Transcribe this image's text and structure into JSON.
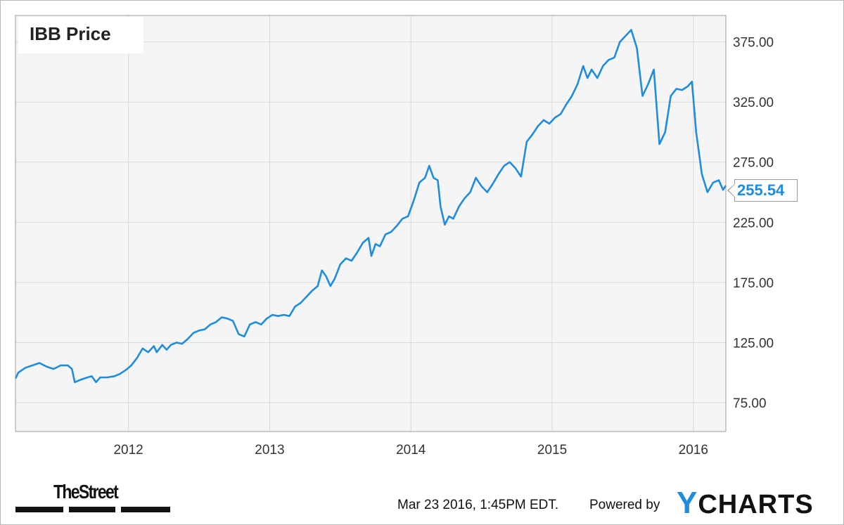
{
  "chart_data": {
    "type": "line",
    "title": "IBB Price",
    "xlabel": "",
    "ylabel": "",
    "ylim": [
      51,
      397
    ],
    "xlim": [
      2011.2,
      2016.23
    ],
    "yticks": [
      75,
      125,
      175,
      225,
      275,
      325,
      375
    ],
    "ytick_labels": [
      "75.00",
      "125.00",
      "175.00",
      "225.00",
      "275.00",
      "325.00",
      "375.00"
    ],
    "xticks": [
      2012,
      2013,
      2014,
      2015,
      2016
    ],
    "xtick_labels": [
      "2012",
      "2013",
      "2014",
      "2015",
      "2016"
    ],
    "grid": true,
    "last_value_label": "255.54",
    "series": [
      {
        "color": "#1f8cdc",
        "points": [
          [
            2011.2,
            95
          ],
          [
            2011.22,
            100
          ],
          [
            2011.27,
            104
          ],
          [
            2011.32,
            106
          ],
          [
            2011.37,
            108
          ],
          [
            2011.42,
            105
          ],
          [
            2011.47,
            103
          ],
          [
            2011.52,
            106
          ],
          [
            2011.57,
            106
          ],
          [
            2011.6,
            103
          ],
          [
            2011.62,
            92
          ],
          [
            2011.66,
            94
          ],
          [
            2011.71,
            96
          ],
          [
            2011.74,
            97
          ],
          [
            2011.77,
            92
          ],
          [
            2011.8,
            96
          ],
          [
            2011.85,
            96
          ],
          [
            2011.9,
            97
          ],
          [
            2011.94,
            99
          ],
          [
            2011.98,
            102
          ],
          [
            2012.02,
            106
          ],
          [
            2012.06,
            112
          ],
          [
            2012.1,
            120
          ],
          [
            2012.14,
            117
          ],
          [
            2012.18,
            122
          ],
          [
            2012.2,
            117
          ],
          [
            2012.24,
            123
          ],
          [
            2012.27,
            119
          ],
          [
            2012.3,
            123
          ],
          [
            2012.34,
            125
          ],
          [
            2012.38,
            124
          ],
          [
            2012.42,
            128
          ],
          [
            2012.46,
            133
          ],
          [
            2012.5,
            135
          ],
          [
            2012.54,
            136
          ],
          [
            2012.58,
            140
          ],
          [
            2012.62,
            142
          ],
          [
            2012.66,
            146
          ],
          [
            2012.7,
            145
          ],
          [
            2012.74,
            143
          ],
          [
            2012.78,
            132
          ],
          [
            2012.82,
            130
          ],
          [
            2012.86,
            140
          ],
          [
            2012.9,
            142
          ],
          [
            2012.94,
            140
          ],
          [
            2012.98,
            145
          ],
          [
            2013.02,
            148
          ],
          [
            2013.06,
            147
          ],
          [
            2013.1,
            148
          ],
          [
            2013.14,
            147
          ],
          [
            2013.18,
            155
          ],
          [
            2013.22,
            158
          ],
          [
            2013.26,
            163
          ],
          [
            2013.3,
            168
          ],
          [
            2013.34,
            172
          ],
          [
            2013.37,
            185
          ],
          [
            2013.4,
            180
          ],
          [
            2013.43,
            172
          ],
          [
            2013.46,
            178
          ],
          [
            2013.5,
            190
          ],
          [
            2013.54,
            195
          ],
          [
            2013.58,
            193
          ],
          [
            2013.62,
            200
          ],
          [
            2013.66,
            208
          ],
          [
            2013.7,
            212
          ],
          [
            2013.72,
            197
          ],
          [
            2013.75,
            207
          ],
          [
            2013.78,
            205
          ],
          [
            2013.82,
            215
          ],
          [
            2013.86,
            217
          ],
          [
            2013.9,
            222
          ],
          [
            2013.94,
            228
          ],
          [
            2013.98,
            230
          ],
          [
            2014.02,
            243
          ],
          [
            2014.06,
            258
          ],
          [
            2014.1,
            262
          ],
          [
            2014.13,
            272
          ],
          [
            2014.16,
            262
          ],
          [
            2014.19,
            260
          ],
          [
            2014.21,
            238
          ],
          [
            2014.24,
            223
          ],
          [
            2014.27,
            230
          ],
          [
            2014.3,
            228
          ],
          [
            2014.34,
            238
          ],
          [
            2014.38,
            245
          ],
          [
            2014.42,
            250
          ],
          [
            2014.46,
            262
          ],
          [
            2014.5,
            255
          ],
          [
            2014.54,
            250
          ],
          [
            2014.58,
            257
          ],
          [
            2014.62,
            265
          ],
          [
            2014.66,
            272
          ],
          [
            2014.7,
            275
          ],
          [
            2014.74,
            270
          ],
          [
            2014.78,
            263
          ],
          [
            2014.82,
            292
          ],
          [
            2014.86,
            298
          ],
          [
            2014.9,
            305
          ],
          [
            2014.94,
            310
          ],
          [
            2014.98,
            307
          ],
          [
            2015.02,
            312
          ],
          [
            2015.06,
            315
          ],
          [
            2015.1,
            323
          ],
          [
            2015.14,
            330
          ],
          [
            2015.18,
            340
          ],
          [
            2015.22,
            355
          ],
          [
            2015.25,
            345
          ],
          [
            2015.28,
            352
          ],
          [
            2015.32,
            345
          ],
          [
            2015.36,
            355
          ],
          [
            2015.4,
            360
          ],
          [
            2015.44,
            362
          ],
          [
            2015.48,
            375
          ],
          [
            2015.52,
            380
          ],
          [
            2015.56,
            385
          ],
          [
            2015.6,
            370
          ],
          [
            2015.64,
            330
          ],
          [
            2015.68,
            340
          ],
          [
            2015.72,
            352
          ],
          [
            2015.76,
            290
          ],
          [
            2015.8,
            300
          ],
          [
            2015.84,
            330
          ],
          [
            2015.88,
            336
          ],
          [
            2015.92,
            335
          ],
          [
            2015.96,
            338
          ],
          [
            2015.99,
            342
          ],
          [
            2016.02,
            300
          ],
          [
            2016.06,
            265
          ],
          [
            2016.1,
            250
          ],
          [
            2016.14,
            258
          ],
          [
            2016.18,
            260
          ],
          [
            2016.21,
            252
          ],
          [
            2016.23,
            255.54
          ]
        ]
      }
    ]
  },
  "footer": {
    "brand_left": "TheStreet",
    "timestamp": "Mar 23 2016, 1:45PM EDT.",
    "powered_by": "Powered by",
    "brand_right_initial": "Y",
    "brand_right_rest": "CHARTS"
  }
}
